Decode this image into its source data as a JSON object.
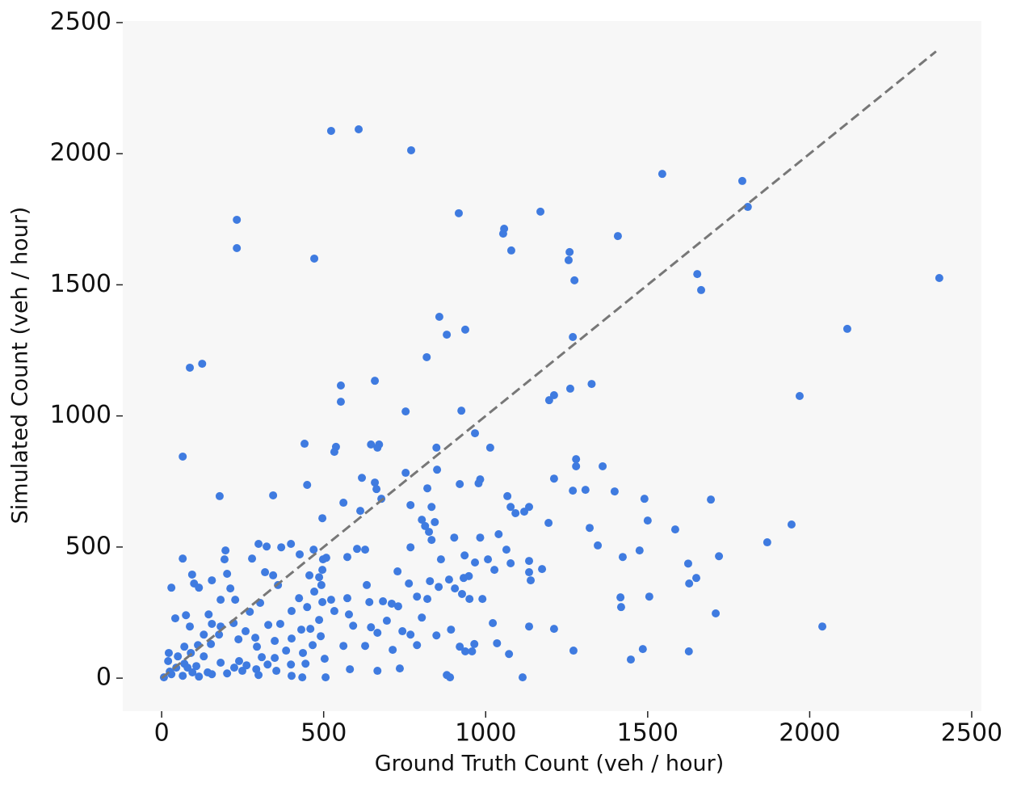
{
  "chart_data": {
    "type": "scatter",
    "xlabel": "Ground Truth Count (veh / hour)",
    "ylabel": "Simulated Count (veh / hour)",
    "xlim": [
      -120,
      2530
    ],
    "ylim": [
      -126,
      2506
    ],
    "xticks": [
      0,
      500,
      1000,
      1500,
      2000,
      2500
    ],
    "yticks": [
      0,
      500,
      1000,
      1500,
      2000,
      2500
    ],
    "background": "#f7f7f7",
    "reference_line": {
      "x": [
        0,
        2390
      ],
      "y": [
        0,
        2390
      ],
      "color": "#777777",
      "dashed": true
    },
    "series": [
      {
        "color": "#3f7be0",
        "x": [
          523,
          608,
          770,
          917,
          1057,
          1054,
          1169,
          1079,
          1408,
          1545,
          1792,
          1809,
          2400,
          1653,
          1665,
          1259,
          1256,
          1274,
          1269,
          232,
          232,
          471,
          125,
          87,
          65,
          179,
          857,
          937,
          880,
          818,
          658,
          553,
          553,
          753,
          925,
          2116,
          1969,
          1327,
          1261,
          1211,
          1196,
          1014,
          967,
          848,
          441,
          538,
          533,
          646,
          671,
          666,
          1279,
          1279,
          1361,
          618,
          753,
          850,
          983,
          978,
          920,
          1067,
          1211,
          1308,
          1269,
          1398,
          1490,
          1695,
          1134,
          1077,
          1092,
          1119,
          658,
          663,
          344,
          449,
          561,
          678,
          820,
          768,
          833,
          613,
          496,
          803,
          813,
          843,
          825,
          1194,
          1321,
          1500,
          1585,
          1869,
          1944,
          1346,
          1423,
          1475,
          1720,
          1625,
          1650,
          1628,
          1174,
          1134,
          1134,
          1139,
          1027,
          1064,
          1040,
          983,
          903,
          935,
          1007,
          1077,
          1416,
          1418,
          1505,
          1710,
          2039,
          1485,
          1627,
          1448,
          1271,
          1211,
          1134,
          1114,
          1072,
          1035,
          1022,
          965,
          958,
          937,
          920,
          880,
          890,
          848,
          893,
          735,
          666,
          581,
          496,
          426,
          399,
          369,
          299,
          324,
          279,
          197,
          194,
          65,
          202,
          94,
          100,
          115,
          30,
          155,
          182,
          227,
          212,
          319,
          344,
          359,
          304,
          424,
          456,
          486,
          471,
          496,
          523,
          533,
          486,
          449,
          401,
          366,
          329,
          259,
          222,
          155,
          75,
          42,
          130,
          152,
          177,
          237,
          289,
          294,
          349,
          401,
          431,
          459,
          491,
          466,
          436,
          384,
          349,
          309,
          239,
          182,
          107,
          70,
          30,
          65,
          115,
          155,
          202,
          249,
          292,
          354,
          399,
          444,
          503,
          506,
          434,
          401,
          112,
          90,
          130,
          22,
          87,
          145,
          182,
          272,
          591,
          578,
          573,
          641,
          683,
          710,
          695,
          730,
          743,
          768,
          788,
          803,
          820,
          788,
          828,
          855,
          763,
          728,
          768,
          833,
          862,
          887,
          905,
          927,
          950,
          990,
          932,
          948,
          967,
          713,
          666,
          646,
          628,
          561,
          633,
          573,
          603,
          628,
          469,
          508,
          498,
          493,
          25,
          45,
          80,
          95,
          142,
          224,
          262,
          327,
          299,
          20,
          50,
          70,
          7
        ],
        "y": [
          2087,
          2093,
          2013,
          1773,
          1714,
          1695,
          1779,
          1631,
          1686,
          1923,
          1896,
          1797,
          1526,
          1541,
          1480,
          1625,
          1594,
          1517,
          1301,
          1748,
          1640,
          1600,
          1199,
          1184,
          845,
          694,
          1378,
          1329,
          1310,
          1224,
          1134,
          1116,
          1054,
          1017,
          1020,
          1332,
          1076,
          1122,
          1104,
          1079,
          1060,
          879,
          934,
          879,
          894,
          882,
          863,
          891,
          891,
          879,
          835,
          808,
          808,
          764,
          783,
          795,
          758,
          743,
          740,
          694,
          761,
          718,
          715,
          712,
          684,
          681,
          653,
          653,
          629,
          635,
          746,
          721,
          697,
          737,
          669,
          684,
          724,
          660,
          653,
          638,
          610,
          604,
          580,
          595,
          558,
          592,
          573,
          601,
          567,
          518,
          586,
          506,
          462,
          487,
          465,
          437,
          382,
          361,
          416,
          404,
          447,
          373,
          413,
          490,
          549,
          536,
          536,
          468,
          453,
          438,
          308,
          271,
          311,
          247,
          197,
          111,
          102,
          71,
          105,
          188,
          197,
          3,
          92,
          133,
          210,
          130,
          102,
          102,
          120,
          12,
          3,
          163,
          185,
          37,
          28,
          34,
          413,
          472,
          512,
          499,
          512,
          502,
          456,
          487,
          453,
          456,
          398,
          395,
          361,
          345,
          345,
          373,
          299,
          299,
          342,
          404,
          392,
          355,
          287,
          305,
          392,
          385,
          330,
          290,
          299,
          256,
          222,
          271,
          256,
          207,
          203,
          179,
          210,
          207,
          240,
          228,
          166,
          130,
          166,
          148,
          154,
          120,
          142,
          151,
          185,
          188,
          160,
          126,
          96,
          105,
          77,
          80,
          65,
          59,
          46,
          55,
          15,
          9,
          6,
          15,
          18,
          28,
          34,
          28,
          52,
          55,
          74,
          3,
          3,
          9,
          126,
          96,
          83,
          96,
          197,
          243,
          197,
          253,
          200,
          243,
          305,
          290,
          293,
          284,
          219,
          274,
          179,
          166,
          126,
          231,
          302,
          311,
          370,
          348,
          361,
          407,
          499,
          527,
          453,
          376,
          342,
          321,
          302,
          302,
          382,
          389,
          441,
          108,
          173,
          194,
          123,
          123,
          355,
          462,
          493,
          490,
          490,
          459,
          453,
          355,
          25,
          40,
          40,
          22,
          22,
          40,
          49,
          52,
          12,
          65,
          83,
          120,
          3
        ]
      }
    ]
  }
}
